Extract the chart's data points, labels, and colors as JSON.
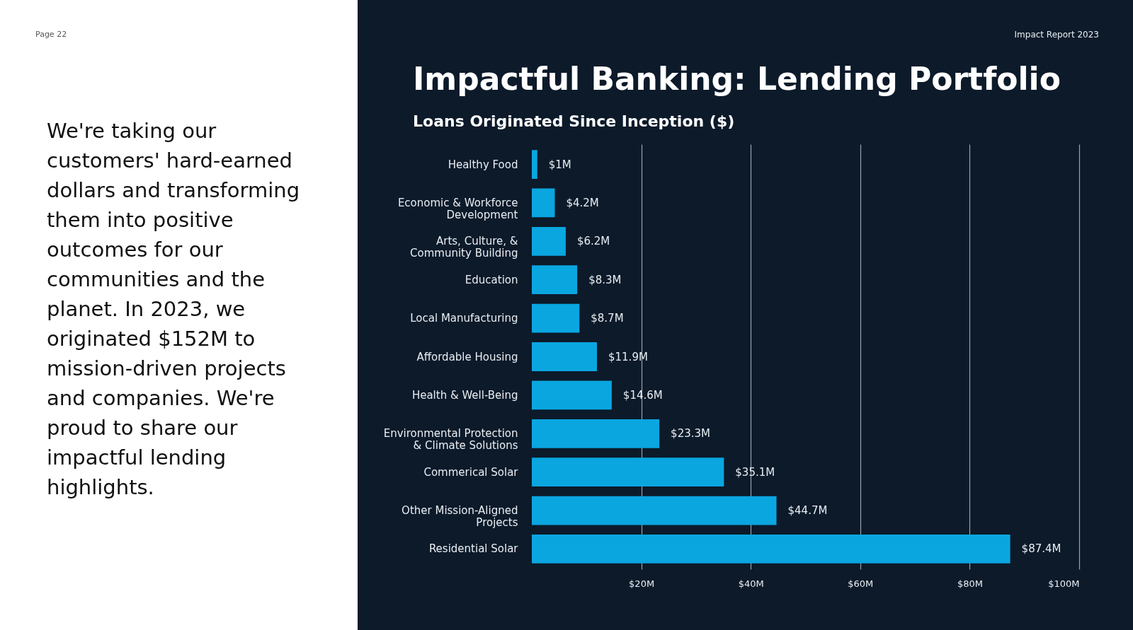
{
  "chart_data": {
    "type": "bar",
    "orientation": "horizontal",
    "title": "Impactful Banking: Lending Portfolio",
    "subtitle": "Loans Originated Since Inception ($)",
    "categories": [
      "Healthy Food",
      "Economic & Workforce Development",
      "Arts, Culture, & Community Building",
      "Education",
      "Local Manufacturing",
      "Affordable Housing",
      "Health & Well-Being",
      "Environmental Protection & Climate Solutions",
      "Commerical Solar",
      "Other Mission-Aligned Projects",
      "Residential Solar"
    ],
    "values": [
      1,
      4.2,
      6.2,
      8.3,
      8.7,
      11.9,
      14.6,
      23.3,
      35.1,
      44.7,
      87.4
    ],
    "value_labels": [
      "$1M",
      "$4.2M",
      "$6.2M",
      "$8.3M",
      "$8.7M",
      "$11.9M",
      "$14.6M",
      "$23.3M",
      "$35.1M",
      "$44.7M",
      "$87.4M"
    ],
    "color": "#0aa6e0",
    "xlim": [
      0,
      100
    ],
    "xticks": [
      {
        "value": 20,
        "label": "$20M"
      },
      {
        "value": 40,
        "label": "$40M"
      },
      {
        "value": 60,
        "label": "$60M"
      },
      {
        "value": 80,
        "label": "$80M"
      },
      {
        "value": 100,
        "label": "$100M"
      }
    ],
    "grid": "x",
    "annotations": [
      "Page 22",
      "Impact Report 2023",
      "We're taking our customers' hard-earned dollars and transforming them into positive outcomes for our communities and the planet. In 2023, we originated $152M to mission-driven projects and companies. We're proud to share our impactful lending highlights."
    ]
  }
}
